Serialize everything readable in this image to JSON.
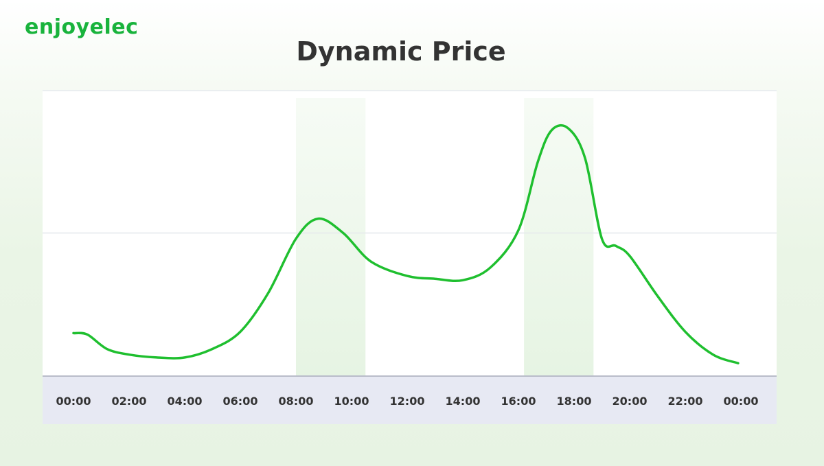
{
  "brand": {
    "logo_text": "enjoyelec"
  },
  "colors": {
    "accent_green": "#19b33c",
    "line_green": "#1fbf2f",
    "highlight_band": "#e6f4e3",
    "axis_band": "#e7e9f3",
    "title_text": "#333333"
  },
  "chart_data": {
    "type": "line",
    "title": "Dynamic Price",
    "xlabel": "",
    "ylabel": "",
    "x_ticks": [
      "00:00",
      "02:00",
      "04:00",
      "06:00",
      "08:00",
      "10:00",
      "12:00",
      "14:00",
      "16:00",
      "18:00",
      "20:00",
      "22:00",
      "00:00"
    ],
    "x_range_hours": [
      0,
      24
    ],
    "ylim": [
      0,
      100
    ],
    "grid": "horizontal",
    "y_axis_labels_shown": false,
    "highlight_ranges_hours": [
      [
        8,
        10.5
      ],
      [
        16.2,
        18.7
      ]
    ],
    "series": [
      {
        "values_hours": [
          0,
          0.5,
          1.2,
          2,
          3,
          4,
          5,
          6,
          7,
          8,
          8.8,
          9.7,
          10.7,
          12,
          13,
          14,
          15,
          16,
          16.7,
          17.2,
          17.8,
          18.4,
          19,
          19.5,
          20,
          21,
          22,
          23,
          23.9
        ],
        "values": [
          15,
          14.5,
          9.5,
          7.5,
          6.5,
          6.5,
          9.5,
          15.5,
          29,
          48,
          55,
          50,
          40,
          35,
          34,
          33.5,
          38,
          51,
          75,
          86,
          86.5,
          76,
          48,
          45.5,
          42,
          28,
          15.5,
          7.5,
          4.5
        ]
      }
    ]
  }
}
